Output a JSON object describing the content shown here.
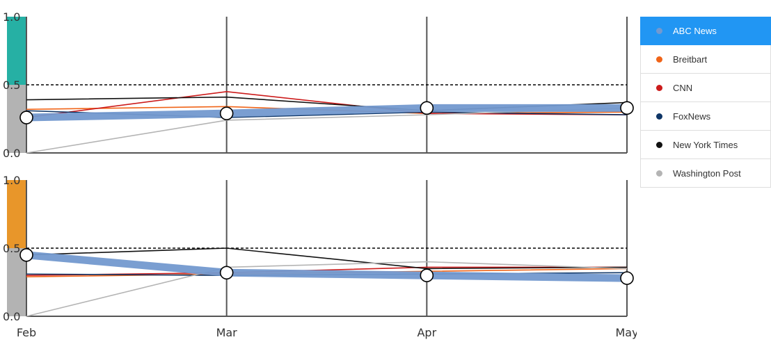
{
  "chart_data": [
    {
      "type": "line",
      "categories": [
        "Feb",
        "Mar",
        "Apr",
        "May"
      ],
      "ylim": [
        0,
        1
      ],
      "yticks": [
        "0.0",
        "0.5",
        "1.0"
      ],
      "reference_line": 0.5,
      "indicator_color": "#26b0a4",
      "indicator_value": 0.5,
      "highlighted_series": "ABC News",
      "series": [
        {
          "name": "ABC News",
          "color": "#7399cf",
          "values": [
            0.26,
            0.29,
            0.33,
            0.33
          ]
        },
        {
          "name": "Breitbart",
          "color": "#f06418",
          "values": [
            0.32,
            0.34,
            0.29,
            0.3
          ]
        },
        {
          "name": "CNN",
          "color": "#cc1b1b",
          "values": [
            0.26,
            0.45,
            0.29,
            0.28
          ]
        },
        {
          "name": "FoxNews",
          "color": "#0e3566",
          "values": [
            0.31,
            0.26,
            0.3,
            0.28
          ]
        },
        {
          "name": "New York Times",
          "color": "#111111",
          "values": [
            0.39,
            0.41,
            0.31,
            0.37
          ]
        },
        {
          "name": "Washington Post",
          "color": "#b4b4b4",
          "values": [
            0.0,
            0.24,
            0.28,
            0.33
          ]
        }
      ]
    },
    {
      "type": "line",
      "categories": [
        "Feb",
        "Mar",
        "Apr",
        "May"
      ],
      "ylim": [
        0,
        1
      ],
      "yticks": [
        "0.0",
        "0.5",
        "1.0"
      ],
      "reference_line": 0.5,
      "indicator_color": "#e8962a",
      "indicator_value": 0.5,
      "highlighted_series": "ABC News",
      "series": [
        {
          "name": "ABC News",
          "color": "#7399cf",
          "values": [
            0.45,
            0.32,
            0.3,
            0.28
          ]
        },
        {
          "name": "Breitbart",
          "color": "#f06418",
          "values": [
            0.29,
            0.31,
            0.33,
            0.35
          ]
        },
        {
          "name": "CNN",
          "color": "#cc1b1b",
          "values": [
            0.3,
            0.32,
            0.36,
            0.36
          ]
        },
        {
          "name": "FoxNews",
          "color": "#0e3566",
          "values": [
            0.31,
            0.3,
            0.31,
            0.32
          ]
        },
        {
          "name": "New York Times",
          "color": "#111111",
          "values": [
            0.45,
            0.5,
            0.35,
            0.36
          ]
        },
        {
          "name": "Washington Post",
          "color": "#b4b4b4",
          "values": [
            0.0,
            0.36,
            0.4,
            0.35
          ]
        }
      ]
    }
  ],
  "legend": {
    "selected": "ABC News",
    "items": [
      {
        "label": "ABC News",
        "color": "#7399cf"
      },
      {
        "label": "Breitbart",
        "color": "#f06418"
      },
      {
        "label": "CNN",
        "color": "#cc1b1b"
      },
      {
        "label": "FoxNews",
        "color": "#0e3566"
      },
      {
        "label": "New York Times",
        "color": "#111111"
      },
      {
        "label": "Washington Post",
        "color": "#b4b4b4"
      }
    ]
  }
}
